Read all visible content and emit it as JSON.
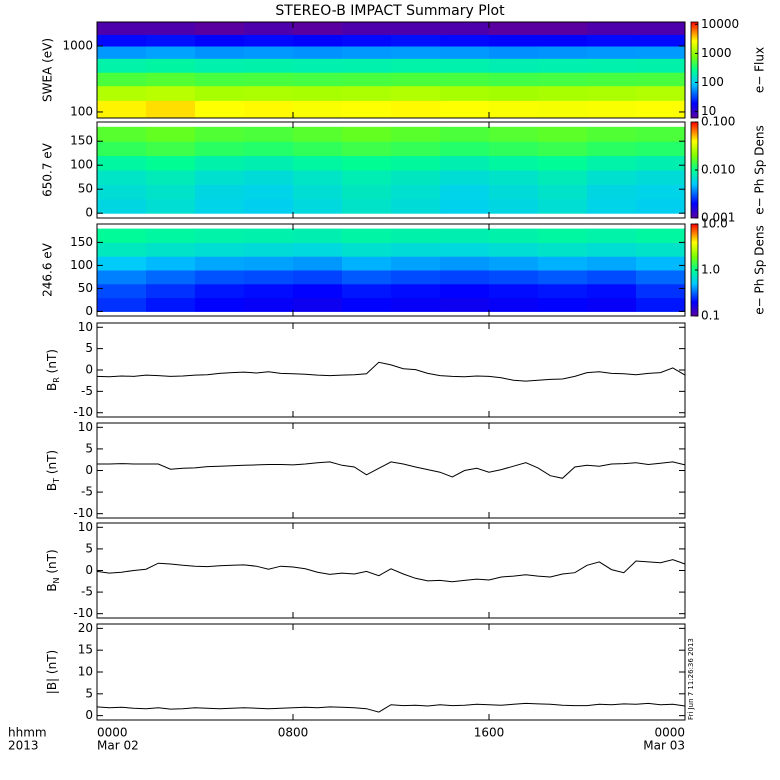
{
  "title": "STEREO-B IMPACT Summary Plot",
  "time": {
    "xlim": [
      0,
      24
    ],
    "xticks": [
      {
        "value": 0,
        "label": "0000"
      },
      {
        "value": 8,
        "label": "0800"
      },
      {
        "value": 16,
        "label": "1600"
      },
      {
        "value": 24,
        "label": "0000"
      }
    ],
    "dates": [
      "Mar 02",
      "Mar 03"
    ],
    "time_label": "hhmm",
    "year_label": "2013",
    "x": [
      0,
      0.5,
      1,
      1.5,
      2,
      2.5,
      3,
      3.5,
      4,
      4.5,
      5,
      5.5,
      6,
      6.5,
      7,
      7.5,
      8,
      8.5,
      9,
      9.5,
      10,
      10.5,
      11,
      11.5,
      12,
      12.5,
      13,
      13.5,
      14,
      14.5,
      15,
      15.5,
      16,
      16.5,
      17,
      17.5,
      18,
      18.5,
      19,
      19.5,
      20,
      20.5,
      21,
      21.5,
      22,
      22.5,
      23,
      23.5,
      24
    ]
  },
  "stamp": "Fri Jun  7 11:26:36 2013",
  "chart_data": [
    {
      "type": "spectrogram",
      "ylabel": "SWEA (eV)",
      "ylog": true,
      "ylim": [
        81,
        2310
      ],
      "yticks": [
        100,
        1000
      ],
      "y_edges": [
        81,
        150,
        250,
        400,
        650,
        1000,
        1500,
        2310
      ],
      "values": [
        [
          2800,
          3200,
          2600,
          2700,
          2500,
          2600,
          2700,
          2600,
          2500,
          2400,
          2500,
          2600
        ],
        [
          1300,
          1400,
          1200,
          1250,
          1200,
          1250,
          1300,
          1200,
          1150,
          1200,
          1250,
          1300
        ],
        [
          520,
          560,
          500,
          510,
          490,
          500,
          520,
          500,
          480,
          490,
          500,
          510
        ],
        [
          210,
          220,
          200,
          205,
          195,
          200,
          210,
          200,
          190,
          195,
          200,
          205
        ],
        [
          60,
          65,
          58,
          60,
          57,
          60,
          62,
          60,
          56,
          58,
          60,
          61
        ],
        [
          20,
          21,
          19,
          20,
          19,
          20,
          21,
          20,
          19,
          19,
          20,
          20
        ],
        [
          7,
          7,
          6,
          7,
          6,
          7,
          7,
          7,
          6,
          6,
          7,
          7
        ]
      ],
      "clabel": "e− Flux",
      "clog": true,
      "clim": [
        6,
        12000
      ],
      "cticks": [
        10,
        100,
        1000,
        10000
      ]
    },
    {
      "type": "spectrogram",
      "ylabel": "650.7 eV",
      "ylog": false,
      "ylim": [
        -10,
        190
      ],
      "yticks": [
        0,
        50,
        100,
        150
      ],
      "y_edges": [
        0,
        30,
        60,
        90,
        120,
        150,
        180
      ],
      "values": [
        [
          0.006,
          0.0066,
          0.0058,
          0.0055,
          0.0062,
          0.007,
          0.0064,
          0.0056,
          0.006,
          0.0066,
          0.0058,
          0.0055
        ],
        [
          0.0065,
          0.007,
          0.006,
          0.0058,
          0.0066,
          0.0074,
          0.0068,
          0.0058,
          0.0064,
          0.007,
          0.006,
          0.0058
        ],
        [
          0.0072,
          0.0078,
          0.0068,
          0.0064,
          0.0072,
          0.008,
          0.0074,
          0.0065,
          0.007,
          0.0078,
          0.0068,
          0.0064
        ],
        [
          0.009,
          0.0098,
          0.0085,
          0.0082,
          0.009,
          0.0098,
          0.0092,
          0.0082,
          0.009,
          0.0096,
          0.0086,
          0.0082
        ],
        [
          0.013,
          0.014,
          0.0125,
          0.012,
          0.013,
          0.014,
          0.0132,
          0.012,
          0.0128,
          0.0136,
          0.0125,
          0.012
        ],
        [
          0.016,
          0.017,
          0.0155,
          0.015,
          0.016,
          0.017,
          0.0162,
          0.015,
          0.0158,
          0.0165,
          0.0155,
          0.015
        ]
      ],
      "clabel": "e− Ph Sp Dens",
      "clog": true,
      "clim": [
        0.001,
        0.1
      ],
      "cticks": [
        {
          "value": 0.001,
          "label": "0.001"
        },
        {
          "value": 0.01,
          "label": "0.010"
        },
        {
          "value": 0.1,
          "label": "0.100"
        }
      ]
    },
    {
      "type": "spectrogram",
      "ylabel": "246.6 eV",
      "ylog": false,
      "ylim": [
        -10,
        190
      ],
      "yticks": [
        0,
        50,
        100,
        150
      ],
      "y_edges": [
        0,
        30,
        60,
        90,
        120,
        150,
        180
      ],
      "values": [
        [
          0.25,
          0.22,
          0.2,
          0.19,
          0.18,
          0.2,
          0.19,
          0.18,
          0.19,
          0.2,
          0.19,
          0.22
        ],
        [
          0.28,
          0.25,
          0.22,
          0.21,
          0.2,
          0.22,
          0.21,
          0.2,
          0.21,
          0.22,
          0.21,
          0.25
        ],
        [
          0.36,
          0.32,
          0.29,
          0.28,
          0.27,
          0.3,
          0.28,
          0.27,
          0.28,
          0.3,
          0.28,
          0.32
        ],
        [
          0.52,
          0.47,
          0.43,
          0.42,
          0.4,
          0.45,
          0.42,
          0.4,
          0.42,
          0.45,
          0.43,
          0.47
        ],
        [
          0.75,
          0.7,
          0.66,
          0.64,
          0.62,
          0.68,
          0.64,
          0.62,
          0.65,
          0.7,
          0.66,
          0.7
        ],
        [
          0.95,
          0.9,
          0.86,
          0.84,
          0.82,
          0.88,
          0.85,
          0.82,
          0.85,
          0.9,
          0.86,
          0.9
        ]
      ],
      "clabel": "e− Ph Sp Dens",
      "clog": true,
      "clim": [
        0.1,
        10
      ],
      "cticks": [
        {
          "value": 0.1,
          "label": "0.1"
        },
        {
          "value": 1,
          "label": "1.0"
        },
        {
          "value": 10,
          "label": "10.0"
        }
      ]
    },
    {
      "type": "line",
      "ylabel": {
        "main": "B",
        "sub": "R",
        "unit": " (nT)"
      },
      "ylim": [
        -11,
        11
      ],
      "yticks": [
        -10,
        -5,
        0,
        5,
        10
      ],
      "color": "#000000",
      "values": [
        -1.5,
        -1.6,
        -1.4,
        -1.5,
        -1.2,
        -1.3,
        -1.5,
        -1.4,
        -1.2,
        -1.1,
        -0.8,
        -0.6,
        -0.5,
        -0.7,
        -0.4,
        -0.8,
        -0.9,
        -1.0,
        -1.2,
        -1.3,
        -1.2,
        -1.1,
        -0.9,
        1.8,
        1.2,
        0.3,
        0.1,
        -0.8,
        -1.3,
        -1.5,
        -1.6,
        -1.4,
        -1.5,
        -1.8,
        -2.4,
        -2.6,
        -2.4,
        -2.2,
        -2.1,
        -1.5,
        -0.6,
        -0.4,
        -0.8,
        -0.9,
        -1.1,
        -0.8,
        -0.6,
        0.5,
        -1.2
      ]
    },
    {
      "type": "line",
      "ylabel": {
        "main": "B",
        "sub": "T",
        "unit": " (nT)"
      },
      "ylim": [
        -11,
        11
      ],
      "yticks": [
        -10,
        -5,
        0,
        5,
        10
      ],
      "color": "#000000",
      "values": [
        1.5,
        1.5,
        1.6,
        1.5,
        1.5,
        1.5,
        0.3,
        0.5,
        0.6,
        0.9,
        1.0,
        1.1,
        1.2,
        1.3,
        1.4,
        1.4,
        1.3,
        1.5,
        1.8,
        2.0,
        1.2,
        0.8,
        -1.0,
        0.5,
        2.0,
        1.5,
        0.8,
        0.2,
        -0.4,
        -1.5,
        0.0,
        0.5,
        -0.4,
        0.2,
        1.0,
        1.8,
        0.6,
        -1.2,
        -1.8,
        0.8,
        1.2,
        1.0,
        1.5,
        1.6,
        1.8,
        1.4,
        1.7,
        2.0,
        1.3
      ]
    },
    {
      "type": "line",
      "ylabel": {
        "main": "B",
        "sub": "N",
        "unit": " (nT)"
      },
      "ylim": [
        -11,
        11
      ],
      "yticks": [
        -10,
        -5,
        0,
        5,
        10
      ],
      "color": "#000000",
      "values": [
        -0.2,
        -0.6,
        -0.4,
        0.0,
        0.3,
        1.7,
        1.5,
        1.2,
        1.0,
        0.9,
        1.1,
        1.2,
        1.3,
        1.0,
        0.3,
        1.0,
        0.8,
        0.4,
        -0.4,
        -0.9,
        -0.6,
        -0.8,
        -0.2,
        -1.2,
        0.4,
        -0.8,
        -1.8,
        -2.4,
        -2.3,
        -2.6,
        -2.3,
        -2.0,
        -2.2,
        -1.5,
        -1.3,
        -1.0,
        -1.3,
        -1.5,
        -0.8,
        -0.5,
        1.2,
        2.0,
        0.2,
        -0.5,
        2.2,
        2.0,
        1.8,
        2.5,
        1.5
      ]
    },
    {
      "type": "line",
      "ylabel": {
        "main": "|B|",
        "sub": "",
        "unit": " (nT)"
      },
      "ylim": [
        -1,
        21
      ],
      "yticks": [
        0,
        5,
        10,
        15,
        20
      ],
      "color": "#000000",
      "values": [
        2.0,
        1.8,
        1.9,
        1.7,
        1.6,
        1.8,
        1.5,
        1.6,
        1.8,
        1.7,
        1.6,
        1.7,
        1.8,
        1.7,
        1.6,
        1.7,
        1.8,
        1.9,
        1.8,
        2.0,
        1.9,
        1.8,
        1.6,
        0.8,
        2.5,
        2.3,
        2.4,
        2.2,
        2.5,
        2.3,
        2.4,
        2.6,
        2.5,
        2.4,
        2.6,
        2.8,
        2.7,
        2.6,
        2.4,
        2.3,
        2.3,
        2.6,
        2.5,
        2.7,
        2.6,
        2.8,
        2.5,
        2.6,
        2.2
      ]
    }
  ]
}
